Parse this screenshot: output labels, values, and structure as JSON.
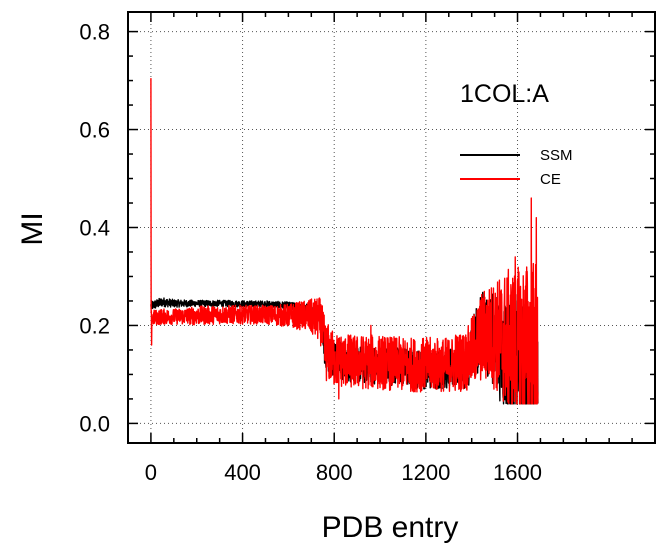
{
  "chart_data": {
    "type": "line",
    "title": "",
    "annotation": "1COL:A",
    "xlabel": "PDB entry",
    "ylabel": "MI",
    "xlim": [
      -100,
      2200
    ],
    "ylim": [
      -0.04,
      0.84
    ],
    "x_ticks": [
      0,
      400,
      800,
      1200,
      1600
    ],
    "x_tick_labels": [
      "0",
      "400",
      "800",
      "1200",
      "1600"
    ],
    "x_minor_step": 100,
    "y_ticks": [
      0.0,
      0.2,
      0.4,
      0.6,
      0.8
    ],
    "y_tick_labels": [
      "0.0",
      "0.2",
      "0.4",
      "0.6",
      "0.8"
    ],
    "y_minor_step": 0.05,
    "grid": true,
    "legend_position": "top-right",
    "n_points": 1690,
    "series": [
      {
        "name": "SSM",
        "color": "#000000",
        "x": [
          0,
          50,
          100,
          200,
          300,
          400,
          500,
          600,
          680,
          740,
          760,
          800,
          900,
          1000,
          1100,
          1200,
          1300,
          1380,
          1420,
          1450,
          1500,
          1550,
          1600,
          1650,
          1690
        ],
        "y": [
          0.24,
          0.248,
          0.245,
          0.245,
          0.245,
          0.244,
          0.244,
          0.24,
          0.235,
          0.22,
          0.16,
          0.13,
          0.12,
          0.12,
          0.115,
          0.11,
          0.11,
          0.12,
          0.17,
          0.19,
          0.17,
          0.14,
          0.12,
          0.1,
          0.08
        ],
        "spread": [
          0.006,
          0.006,
          0.005,
          0.004,
          0.004,
          0.004,
          0.004,
          0.005,
          0.006,
          0.012,
          0.03,
          0.025,
          0.025,
          0.025,
          0.025,
          0.025,
          0.025,
          0.03,
          0.045,
          0.05,
          0.06,
          0.08,
          0.09,
          0.09,
          0.06
        ]
      },
      {
        "name": "CE",
        "color": "#ff0000",
        "x": [
          0,
          50,
          100,
          200,
          300,
          400,
          500,
          600,
          680,
          740,
          760,
          800,
          900,
          1000,
          1100,
          1200,
          1300,
          1380,
          1420,
          1450,
          1500,
          1550,
          1600,
          1650,
          1690
        ],
        "y": [
          0.215,
          0.218,
          0.218,
          0.22,
          0.222,
          0.222,
          0.222,
          0.22,
          0.22,
          0.21,
          0.15,
          0.13,
          0.125,
          0.125,
          0.12,
          0.12,
          0.12,
          0.13,
          0.16,
          0.18,
          0.18,
          0.17,
          0.16,
          0.16,
          0.15
        ],
        "spread": [
          0.01,
          0.01,
          0.01,
          0.012,
          0.012,
          0.012,
          0.012,
          0.015,
          0.02,
          0.03,
          0.04,
          0.035,
          0.035,
          0.035,
          0.035,
          0.035,
          0.035,
          0.04,
          0.05,
          0.06,
          0.07,
          0.09,
          0.1,
          0.11,
          0.12
        ],
        "spikes": [
          {
            "x": 0,
            "y": 0.705
          },
          {
            "x": 3,
            "y": 0.16
          },
          {
            "x": 820,
            "y": 0.05
          },
          {
            "x": 960,
            "y": 0.2
          },
          {
            "x": 1330,
            "y": 0.18
          },
          {
            "x": 1590,
            "y": 0.34
          },
          {
            "x": 1638,
            "y": 0.31
          },
          {
            "x": 1660,
            "y": 0.46
          },
          {
            "x": 1682,
            "y": 0.42
          }
        ]
      }
    ]
  }
}
